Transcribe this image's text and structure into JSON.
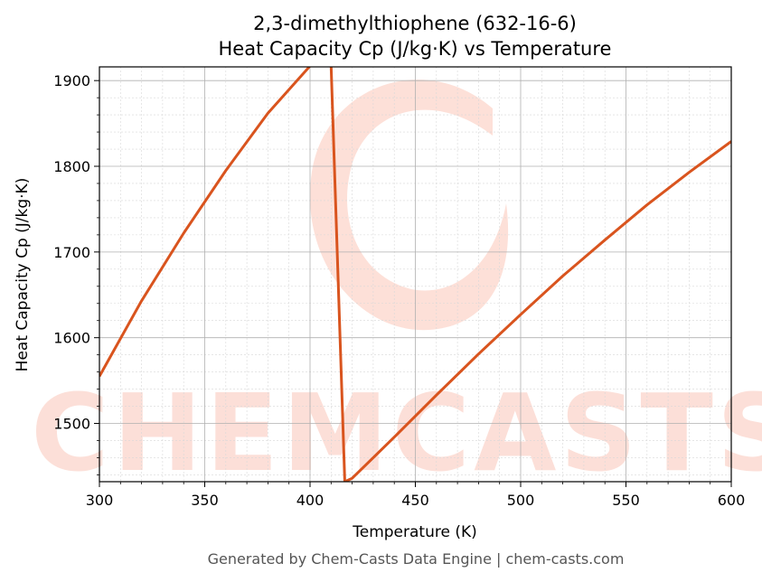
{
  "chart_data": {
    "type": "line",
    "title_lines": [
      "2,3-dimethylthiophene (632-16-6)",
      "Heat Capacity Cp (J/kg·K) vs Temperature"
    ],
    "xlabel": "Temperature (K)",
    "ylabel": "Heat Capacity Cp (J/kg·K)",
    "xlim": [
      300,
      600
    ],
    "ylim": [
      1432,
      1916
    ],
    "x_ticks": [
      300,
      350,
      400,
      450,
      500,
      550,
      600
    ],
    "y_ticks": [
      1500,
      1600,
      1700,
      1800,
      1900
    ],
    "grid": true,
    "minor_grid": true,
    "series": [
      {
        "color": "#d9541e",
        "x": [
          300,
          320,
          340,
          360,
          380,
          400,
          410,
          416.5,
          420,
          440,
          460,
          480,
          500,
          520,
          540,
          560,
          580,
          600
        ],
        "y": [
          1555,
          1643,
          1722,
          1795,
          1862,
          1917,
          1917,
          1432,
          1436,
          1484,
          1533,
          1581,
          1627,
          1672,
          1714,
          1755,
          1793,
          1829
        ]
      }
    ]
  },
  "watermark": {
    "text": "CHEMCASTS",
    "color": "#fcd5cb"
  },
  "footer": "Generated by Chem-Casts Data Engine | chem-casts.com"
}
